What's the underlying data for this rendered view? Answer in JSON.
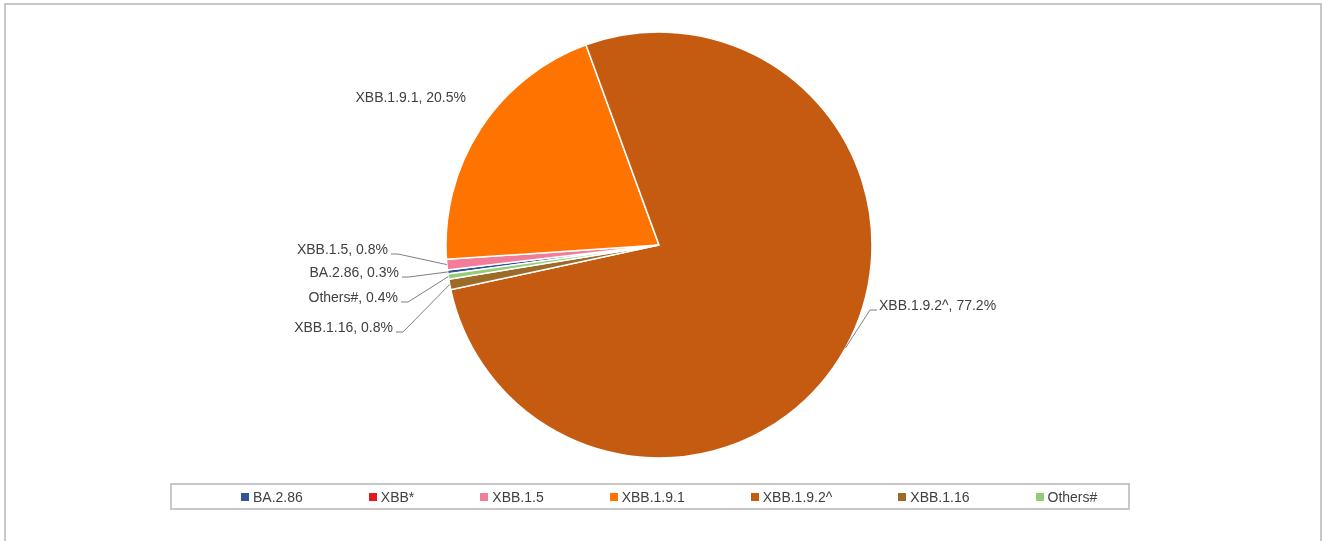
{
  "chart_data": {
    "type": "pie",
    "categories": [
      "BA.2.86",
      "XBB*",
      "XBB.1.5",
      "XBB.1.9.1",
      "XBB.1.9.2^",
      "XBB.1.16",
      "Others#"
    ],
    "values": [
      0.3,
      0,
      0.8,
      20.5,
      77.2,
      0.8,
      0.4
    ],
    "colors": [
      "#2f5597",
      "#e31a1c",
      "#f47c9b",
      "#ff7300",
      "#c55a11",
      "#9c6b2a",
      "#92cc77"
    ],
    "value_labels": [
      "BA.2.86, 0.3%",
      null,
      "XBB.1.5, 0.8%",
      "XBB.1.9.1, 20.5%",
      "XBB.1.9.2^, 77.2%",
      "XBB.1.16, 0.8%",
      "Others#, 0.4%"
    ],
    "legend": "bottom"
  }
}
